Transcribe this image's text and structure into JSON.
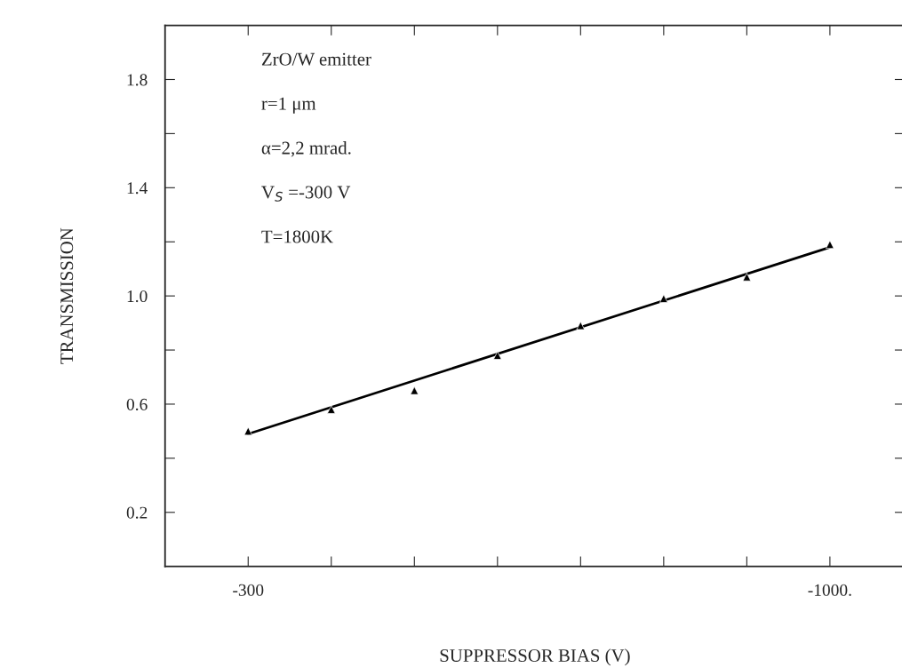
{
  "chart_data": {
    "type": "scatter",
    "xlabel": "SUPPRESSOR BIAS (V)",
    "ylabel": "TRANSMISSION",
    "annotations": [
      "ZrO/W emitter",
      "r=1 μm",
      "α=2,2 mrad.",
      "V$_{S}$ =-300 V",
      "T=1800K"
    ],
    "series": [
      {
        "color": "#000000",
        "marker": "triangle",
        "x": [
          -300,
          -400,
          -500,
          -600,
          -700,
          -800,
          -900,
          -1000
        ],
        "values": [
          0.5,
          0.58,
          0.65,
          0.78,
          0.89,
          0.99,
          1.07,
          1.19
        ]
      },
      {
        "type": "line",
        "color": "#000000",
        "marker": "none",
        "line_style": "solid",
        "x": [
          -300,
          -1000
        ],
        "values": [
          0.49,
          1.18
        ]
      }
    ],
    "xlim": [
      -200,
      -1090
    ],
    "ylim": [
      0,
      2
    ],
    "xticks": [
      -300,
      {
        "value": -400,
        "label": null
      },
      {
        "value": -500,
        "label": null
      },
      {
        "value": -600,
        "label": null
      },
      {
        "value": -700,
        "label": null
      },
      {
        "value": -800,
        "label": null
      },
      {
        "value": -900,
        "label": null
      },
      {
        "value": -1000,
        "label": "-1000."
      }
    ],
    "yticks": [
      0.2,
      {
        "value": 0.4,
        "label": null
      },
      0.6,
      {
        "value": 0.8,
        "label": null
      },
      {
        "value": 1.0,
        "label": "1.0"
      },
      {
        "value": 1.2,
        "label": null
      },
      1.4,
      {
        "value": 1.6,
        "label": null
      },
      1.8
    ],
    "grid": false
  }
}
